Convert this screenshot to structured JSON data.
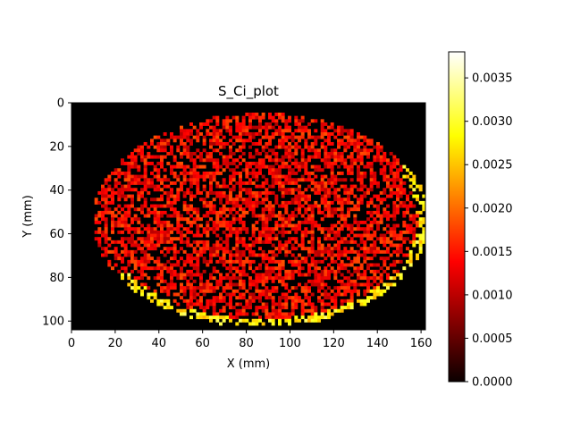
{
  "chart_data": {
    "type": "heatmap",
    "title": "S_Ci_plot",
    "xlabel": "X (mm)",
    "ylabel": "Y (mm)",
    "xlim": [
      0,
      162
    ],
    "ylim": [
      104,
      0
    ],
    "x_ticks": [
      "0",
      "20",
      "40",
      "60",
      "80",
      "100",
      "120",
      "140",
      "160"
    ],
    "y_ticks": [
      "0",
      "20",
      "40",
      "60",
      "80",
      "100"
    ],
    "colormap": "hot",
    "colorbar": {
      "range": [
        0,
        0.0038
      ],
      "tick_values": [
        0.0,
        0.0005,
        0.001,
        0.0015,
        0.002,
        0.0025,
        0.003,
        0.0035
      ],
      "tick_labels": [
        "0.0000",
        "0.0005",
        "0.0010",
        "0.0015",
        "0.0020",
        "0.0025",
        "0.0030",
        "0.0035"
      ]
    },
    "field": {
      "description_shape": "ellipse",
      "center": [
        86,
        53
      ],
      "semi_axes": [
        77,
        49
      ],
      "typical_value": 0.0016,
      "edge_highlight_value": 0.0028,
      "background_value": 0.0
    }
  }
}
